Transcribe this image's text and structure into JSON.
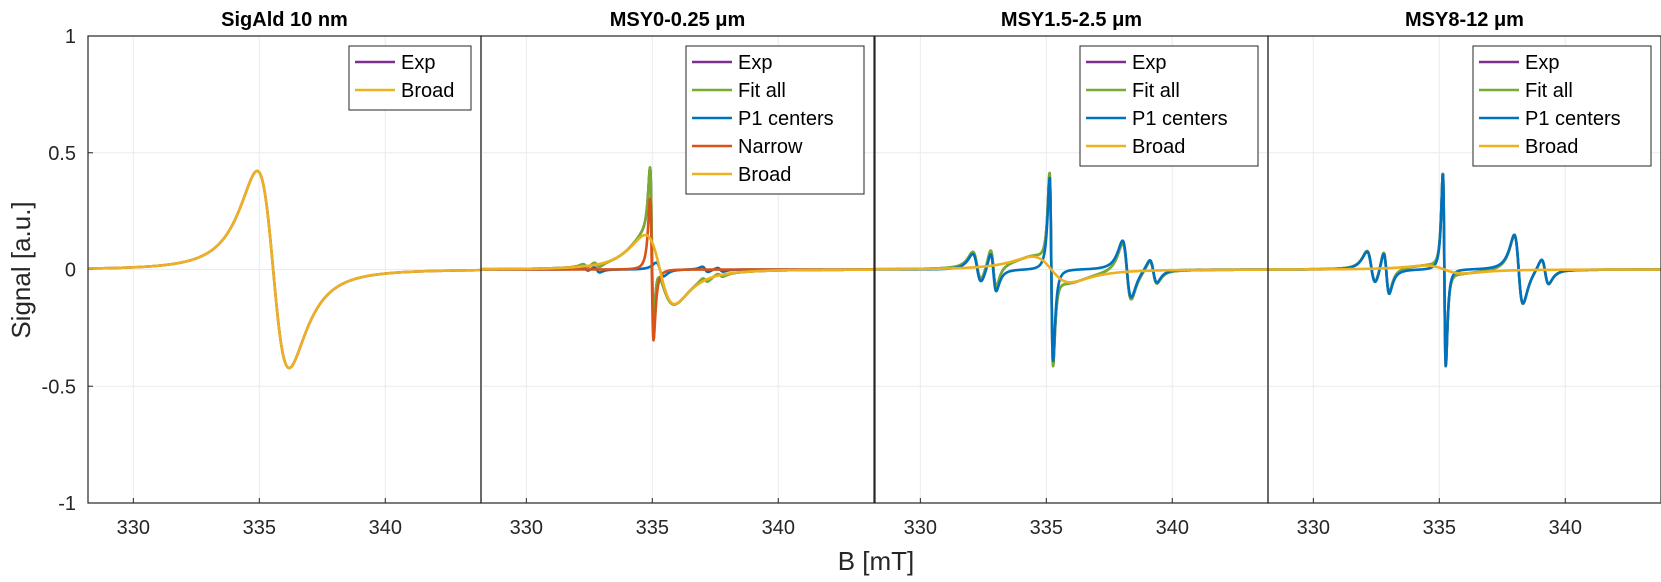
{
  "chart_data": {
    "type": "line",
    "xlabel": "B [mT]",
    "ylabel": "Signal [a.u.]",
    "xlim": [
      328.2,
      343.8
    ],
    "ylim": [
      -1,
      1
    ],
    "xticks": [
      330,
      335,
      340
    ],
    "yticks": [
      -1,
      -0.5,
      0,
      0.5,
      1
    ],
    "ytick_labels": [
      "-1",
      "-0.5",
      "0",
      "0.5",
      "1"
    ],
    "grid": true,
    "colors": {
      "Exp": "#7E2F8E",
      "Fit all": "#77AC30",
      "P1 centers": "#0072BD",
      "Narrow": "#D95319",
      "Broad": "#EDB120"
    },
    "panels": [
      {
        "title": "SigAld 10 nm",
        "legend": [
          "Exp",
          "Broad"
        ],
        "series": [
          {
            "name": "Exp",
            "lines": [
              {
                "x0": 335.55,
                "w": 1.1,
                "a": 1.0
              }
            ]
          },
          {
            "name": "Broad",
            "lines": [
              {
                "x0": 335.55,
                "w": 1.1,
                "a": 1.0
              }
            ]
          }
        ]
      },
      {
        "title": "MSY0-0.25 μm",
        "legend": [
          "Exp",
          "Fit all",
          "P1 centers",
          "Narrow",
          "Broad"
        ],
        "series": [
          {
            "name": "Exp",
            "lines": [
              {
                "x0": 335.3,
                "w": 1.0,
                "a": 0.35
              },
              {
                "x0": 334.98,
                "w": 0.12,
                "a": 0.72
              },
              {
                "x0": 332.8,
                "w": 0.2,
                "a": 0.028
              },
              {
                "x0": 337.1,
                "w": 0.2,
                "a": 0.028
              },
              {
                "x0": 332.35,
                "w": 0.2,
                "a": 0.02
              },
              {
                "x0": 337.7,
                "w": 0.2,
                "a": 0.02
              }
            ]
          },
          {
            "name": "Fit all",
            "lines": [
              {
                "x0": 335.3,
                "w": 1.0,
                "a": 0.35
              },
              {
                "x0": 334.98,
                "w": 0.12,
                "a": 0.72
              },
              {
                "x0": 332.8,
                "w": 0.2,
                "a": 0.028
              },
              {
                "x0": 337.1,
                "w": 0.2,
                "a": 0.028
              },
              {
                "x0": 332.35,
                "w": 0.2,
                "a": 0.02
              },
              {
                "x0": 337.7,
                "w": 0.2,
                "a": 0.02
              }
            ]
          },
          {
            "name": "P1 centers",
            "lines": [
              {
                "x0": 335.3,
                "w": 0.25,
                "a": 0.07
              },
              {
                "x0": 332.8,
                "w": 0.2,
                "a": 0.028
              },
              {
                "x0": 337.1,
                "w": 0.2,
                "a": 0.028
              },
              {
                "x0": 332.35,
                "w": 0.2,
                "a": 0.02
              },
              {
                "x0": 337.7,
                "w": 0.2,
                "a": 0.02
              }
            ]
          },
          {
            "name": "Narrow",
            "lines": [
              {
                "x0": 334.98,
                "w": 0.12,
                "a": 0.72
              }
            ]
          },
          {
            "name": "Broad",
            "lines": [
              {
                "x0": 335.3,
                "w": 1.0,
                "a": 0.35
              }
            ]
          }
        ]
      },
      {
        "title": "MSY1.5-2.5 μm",
        "legend": [
          "Exp",
          "Fit all",
          "P1 centers",
          "Broad"
        ],
        "series": [
          {
            "name": "Exp",
            "lines": [
              {
                "x0": 335.2,
                "w": 0.12,
                "a": 0.96
              },
              {
                "x0": 335.2,
                "w": 1.3,
                "a": 0.13
              },
              {
                "x0": 332.25,
                "w": 0.3,
                "a": 0.15
              },
              {
                "x0": 338.2,
                "w": 0.3,
                "a": 0.29
              },
              {
                "x0": 332.9,
                "w": 0.2,
                "a": 0.2
              },
              {
                "x0": 339.25,
                "w": 0.25,
                "a": 0.12
              }
            ]
          },
          {
            "name": "Fit all",
            "lines": [
              {
                "x0": 335.2,
                "w": 0.12,
                "a": 0.96
              },
              {
                "x0": 335.2,
                "w": 1.3,
                "a": 0.13
              },
              {
                "x0": 332.25,
                "w": 0.3,
                "a": 0.15
              },
              {
                "x0": 338.2,
                "w": 0.3,
                "a": 0.29
              },
              {
                "x0": 332.9,
                "w": 0.2,
                "a": 0.2
              },
              {
                "x0": 339.25,
                "w": 0.25,
                "a": 0.12
              }
            ]
          },
          {
            "name": "P1 centers",
            "lines": [
              {
                "x0": 335.2,
                "w": 0.12,
                "a": 0.93
              },
              {
                "x0": 332.25,
                "w": 0.3,
                "a": 0.15
              },
              {
                "x0": 338.2,
                "w": 0.3,
                "a": 0.29
              },
              {
                "x0": 332.9,
                "w": 0.2,
                "a": 0.2
              },
              {
                "x0": 339.25,
                "w": 0.25,
                "a": 0.12
              }
            ]
          },
          {
            "name": "Broad",
            "lines": [
              {
                "x0": 335.2,
                "w": 1.3,
                "a": 0.13
              }
            ]
          }
        ]
      },
      {
        "title": "MSY8-12 μm",
        "legend": [
          "Exp",
          "Fit all",
          "P1 centers",
          "Broad"
        ],
        "series": [
          {
            "name": "Exp",
            "lines": [
              {
                "x0": 335.2,
                "w": 0.1,
                "a": 0.98
              },
              {
                "x0": 335.2,
                "w": 1.3,
                "a": 0.04
              },
              {
                "x0": 332.3,
                "w": 0.3,
                "a": 0.17
              },
              {
                "x0": 338.15,
                "w": 0.3,
                "a": 0.35
              },
              {
                "x0": 332.9,
                "w": 0.2,
                "a": 0.22
              },
              {
                "x0": 339.2,
                "w": 0.25,
                "a": 0.13
              }
            ]
          },
          {
            "name": "Fit all",
            "lines": [
              {
                "x0": 335.2,
                "w": 0.1,
                "a": 0.98
              },
              {
                "x0": 335.2,
                "w": 1.3,
                "a": 0.04
              },
              {
                "x0": 332.3,
                "w": 0.3,
                "a": 0.17
              },
              {
                "x0": 338.15,
                "w": 0.3,
                "a": 0.35
              },
              {
                "x0": 332.9,
                "w": 0.2,
                "a": 0.22
              },
              {
                "x0": 339.2,
                "w": 0.25,
                "a": 0.13
              }
            ]
          },
          {
            "name": "P1 centers",
            "lines": [
              {
                "x0": 335.2,
                "w": 0.1,
                "a": 0.98
              },
              {
                "x0": 332.3,
                "w": 0.3,
                "a": 0.17
              },
              {
                "x0": 338.15,
                "w": 0.3,
                "a": 0.35
              },
              {
                "x0": 332.9,
                "w": 0.2,
                "a": 0.22
              },
              {
                "x0": 339.2,
                "w": 0.25,
                "a": 0.13
              }
            ]
          },
          {
            "name": "Broad",
            "lines": [
              {
                "x0": 335.2,
                "w": 1.3,
                "a": 0.04
              }
            ]
          }
        ]
      }
    ]
  }
}
